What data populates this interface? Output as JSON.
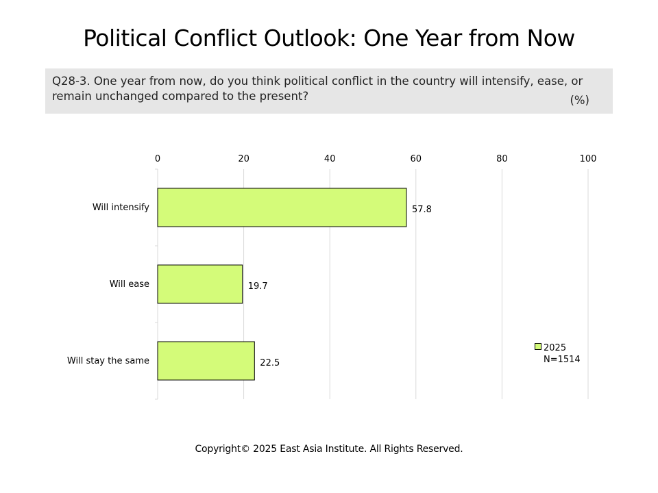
{
  "title": "Political Conflict Outlook: One Year from Now",
  "question": {
    "text": "Q28-3. One year from now, do you think political conflict in the country will intensify, ease, or remain unchanged compared to the present?",
    "unit": "(%)"
  },
  "chart_data": {
    "type": "bar",
    "orientation": "horizontal",
    "categories": [
      "Will intensify",
      "Will ease",
      "Will stay the same"
    ],
    "series": [
      {
        "name": "2025",
        "values": [
          57.8,
          19.7,
          22.5
        ],
        "color": "#d4fb79"
      }
    ],
    "value_labels": [
      "57.8",
      "19.7",
      "22.5"
    ],
    "xlim": [
      0,
      100
    ],
    "ticks": [
      "0",
      "20",
      "40",
      "60",
      "80",
      "100"
    ],
    "tick_values": [
      0,
      20,
      40,
      60,
      80,
      100
    ],
    "grid": true,
    "axis_position": "top",
    "legend_position": "bottom-right"
  },
  "legend": {
    "series_label": "2025",
    "sample": "N=1514"
  },
  "footer": "Copyright© 2025 East Asia Institute. All Rights Reserved."
}
